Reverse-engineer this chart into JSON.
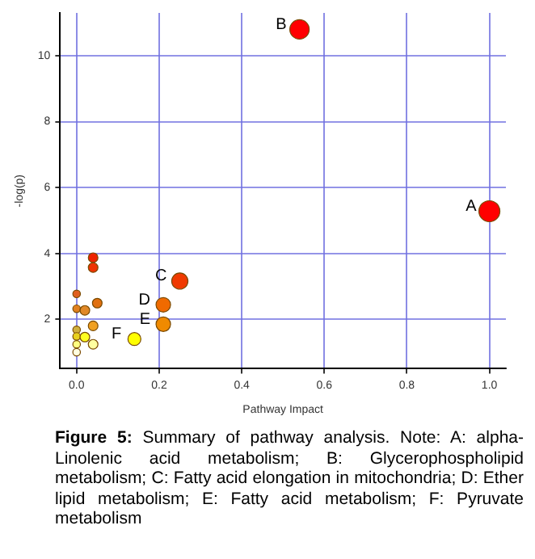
{
  "chart_data": {
    "type": "bubble",
    "title": "Figure 5:",
    "xlabel": "Pathway Impact",
    "ylabel": "-log(p)",
    "series": [
      {
        "x": [
          1.0,
          0.54,
          0.25,
          0.21,
          0.21,
          0.14,
          0.04,
          0.04,
          0,
          0.05,
          0,
          0.02,
          0.04,
          0,
          0,
          0.02,
          0.04,
          0,
          0
        ],
        "values": [
          5.28,
          10.8,
          3.16,
          2.44,
          1.85,
          1.4,
          3.87,
          3.57,
          2.77,
          2.49,
          2.32,
          2.27,
          1.8,
          1.68,
          1.48,
          1.46,
          1.24,
          1.24,
          1.0
        ],
        "sizes": [
          1,
          0.85,
          0.6,
          0.48,
          0.48,
          0.38,
          0.21,
          0.21,
          0.13,
          0.21,
          0.13,
          0.21,
          0.21,
          0.13,
          0.13,
          0.21,
          0.21,
          0.13,
          0.13
        ],
        "colors": [
          "#ff0000",
          "#ff0000",
          "#f03a00",
          "#f06a00",
          "#f08a00",
          "#ffff00",
          "#ee2200",
          "#ee3300",
          "#e06020",
          "#e07010",
          "#e08020",
          "#e08828",
          "#f0a020",
          "#d0b040",
          "#e8d020",
          "#ffff20",
          "#ffffa0",
          "#ffff80",
          "#ffffe0"
        ]
      }
    ],
    "xlim": [
      -0.04,
      1.04
    ],
    "xticks": [
      {
        "value": 0,
        "label": "0.0"
      },
      0.2,
      0.4,
      0.6,
      0.8,
      {
        "value": 1,
        "label": "1.0"
      }
    ],
    "ylim": [
      0.5,
      11.3
    ],
    "yticks": [
      2,
      4,
      6,
      8,
      10
    ],
    "grid": true,
    "annotations": [
      {
        "text": "A",
        "x": 1.0,
        "y": 5.28
      },
      {
        "text": "B",
        "x": 0.54,
        "y": 10.8
      },
      {
        "text": "C",
        "x": 0.25,
        "y": 3.16
      },
      {
        "text": "D",
        "x": 0.21,
        "y": 2.44
      },
      {
        "text": "E",
        "x": 0.21,
        "y": 1.85
      },
      {
        "text": "F",
        "x": 0.14,
        "y": 1.4
      },
      "Summary of pathway analysis. Note: A: alpha-Linolenic acid metabolism; B: Glycerophospholipid metabolism; C: Fatty acid elongation in mitochondria; D: Ether lipid metabolism; E: Fatty acid metabolism; F: Pyruvate metabolism"
    ]
  }
}
